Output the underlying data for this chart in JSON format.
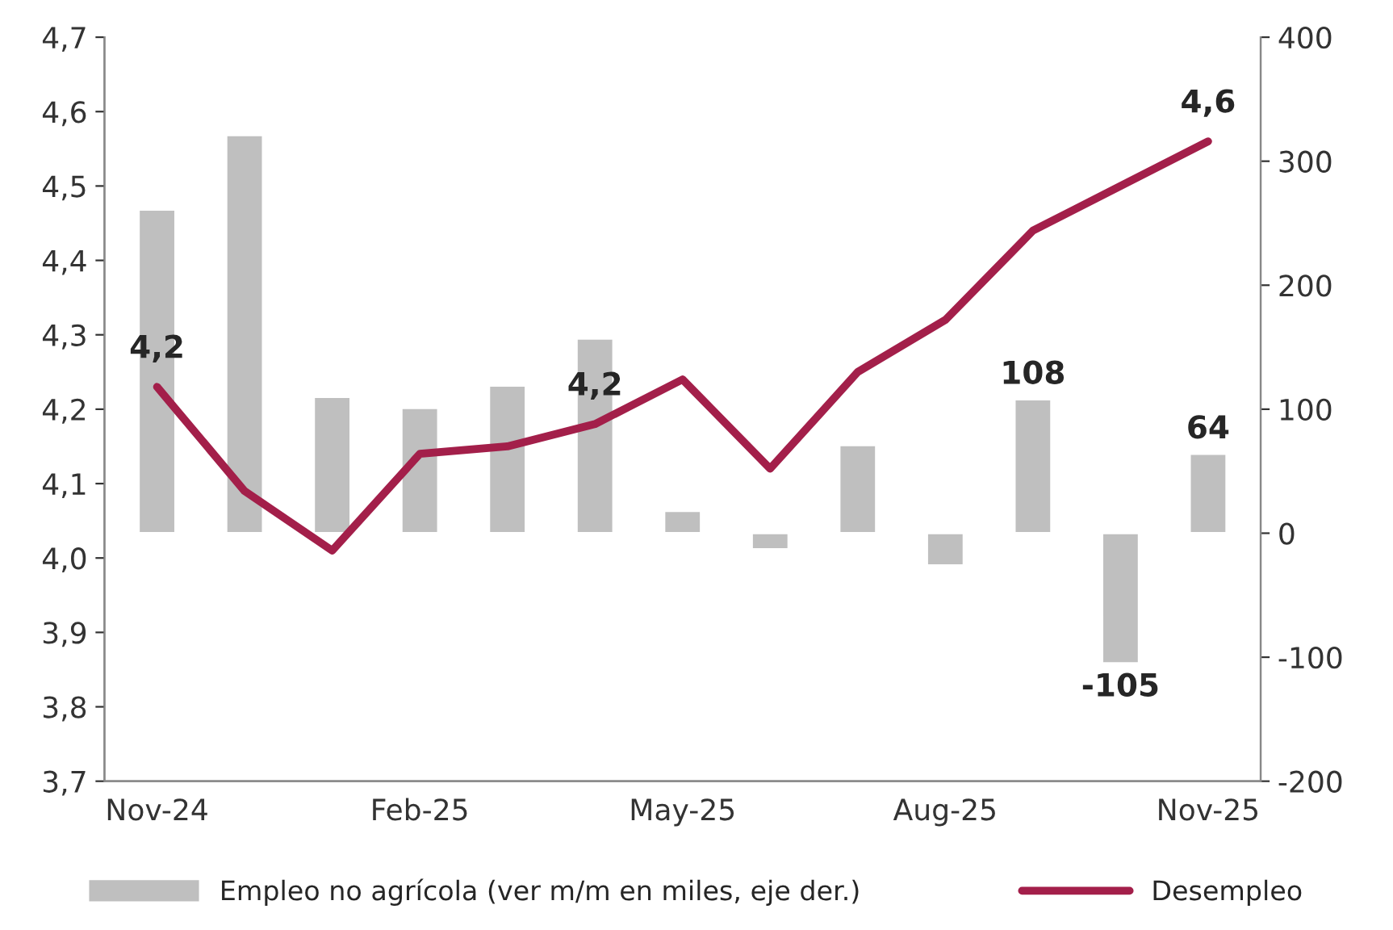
{
  "chart_data": {
    "type": "bar",
    "categories": [
      "Nov-24",
      null,
      null,
      "Feb-25",
      null,
      null,
      "May-25",
      null,
      null,
      "Aug-25",
      null,
      null,
      "Nov-25"
    ],
    "series": [
      {
        "name": "Empleo no agrícola (ver m/m en miles, eje der.)",
        "axis": "y2",
        "color": "#bfbfbf",
        "values": [
          261,
          321,
          110,
          101,
          119,
          157,
          18,
          -13,
          71,
          -26,
          108,
          -105,
          64
        ],
        "value_labels": [
          null,
          null,
          null,
          null,
          null,
          null,
          null,
          null,
          null,
          null,
          "108",
          "-105",
          "64"
        ]
      },
      {
        "name": "Desempleo",
        "type": "line",
        "axis": "y",
        "color": "#a31f4a",
        "values": [
          4.23,
          4.09,
          4.01,
          4.14,
          4.15,
          4.18,
          4.24,
          4.12,
          4.25,
          4.32,
          4.44,
          4.5,
          4.56
        ],
        "value_labels": [
          "4,2",
          null,
          null,
          null,
          null,
          "4,2",
          null,
          null,
          null,
          null,
          null,
          null,
          "4,6"
        ]
      }
    ],
    "ylim": [
      3.7,
      4.7
    ],
    "yticks": [
      {
        "value": 3.7,
        "label": "3,7"
      },
      {
        "value": 3.8,
        "label": "3,8"
      },
      {
        "value": 3.9,
        "label": "3,9"
      },
      {
        "value": 4.0,
        "label": "4,0"
      },
      {
        "value": 4.1,
        "label": "4,1"
      },
      {
        "value": 4.2,
        "label": "4,2"
      },
      {
        "value": 4.3,
        "label": "4,3"
      },
      {
        "value": 4.4,
        "label": "4,4"
      },
      {
        "value": 4.5,
        "label": "4,5"
      },
      {
        "value": 4.6,
        "label": "4,6"
      },
      {
        "value": 4.7,
        "label": "4,7"
      }
    ],
    "y2lim": [
      -200,
      400
    ],
    "y2ticks": [
      -200,
      -100,
      0,
      100,
      200,
      300,
      400
    ],
    "legend": "bottom",
    "grid": false,
    "marker": "none",
    "line_style": "solid"
  }
}
